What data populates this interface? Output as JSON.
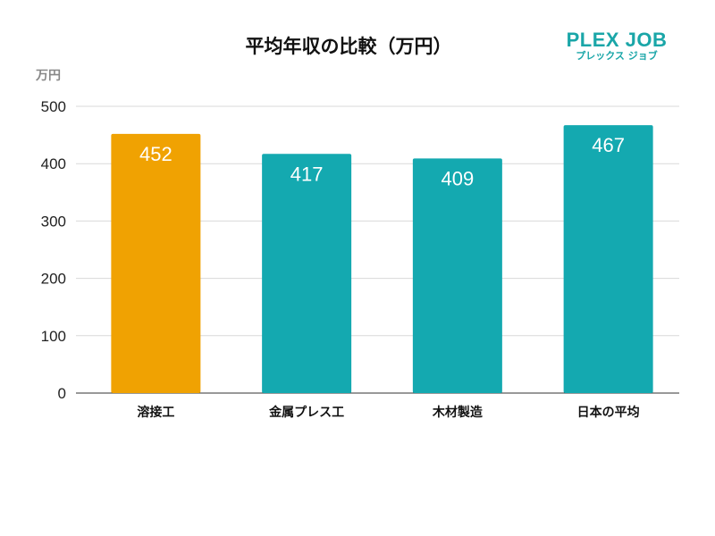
{
  "chart_data": {
    "type": "bar",
    "title": "平均年収の比較（万円）",
    "ylabel": "万円",
    "xlabel": "",
    "categories": [
      "溶接工",
      "金属プレス工",
      "木材製造",
      "日本の平均"
    ],
    "values": [
      452,
      417,
      409,
      467
    ],
    "colors": [
      "#F0A202",
      "#14A9B0",
      "#14A9B0",
      "#14A9B0"
    ],
    "ylim": [
      0,
      500
    ],
    "yticks": [
      0,
      100,
      200,
      300,
      400,
      500
    ],
    "grid": true,
    "legend": "none"
  },
  "logo": {
    "main": "PLEX JOB",
    "sub": "プレックス ジョブ"
  }
}
